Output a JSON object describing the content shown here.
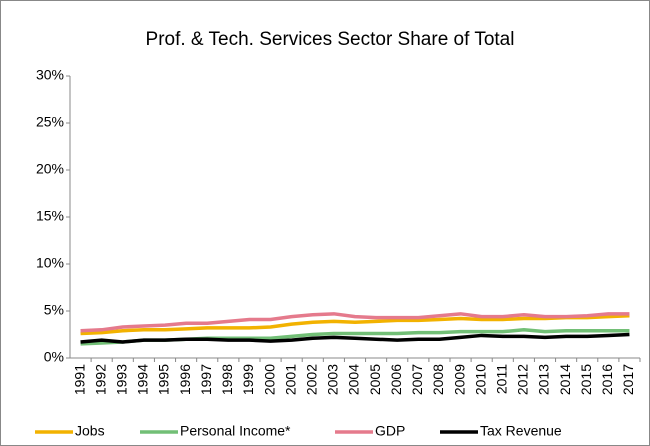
{
  "chart_data": {
    "type": "line",
    "title": "Prof. & Tech. Services Sector Share of Total",
    "categories": [
      "1991",
      "1992",
      "1993",
      "1994",
      "1995",
      "1996",
      "1997",
      "1998",
      "1999",
      "2000",
      "2001",
      "2002",
      "2003",
      "2004",
      "2005",
      "2006",
      "2007",
      "2008",
      "2009",
      "2010",
      "2011",
      "2012",
      "2013",
      "2014",
      "2015",
      "2016",
      "2017"
    ],
    "series": [
      {
        "name": "Jobs",
        "color": "#f2b200",
        "values": [
          2.6,
          2.7,
          2.9,
          3.0,
          3.0,
          3.1,
          3.2,
          3.2,
          3.2,
          3.3,
          3.6,
          3.8,
          3.9,
          3.8,
          3.9,
          4.0,
          4.0,
          4.1,
          4.2,
          4.1,
          4.1,
          4.2,
          4.2,
          4.3,
          4.3,
          4.4,
          4.5
        ]
      },
      {
        "name": "Personal Income*",
        "color": "#72bf76",
        "values": [
          1.5,
          1.6,
          1.7,
          1.9,
          1.9,
          2.0,
          2.1,
          2.1,
          2.1,
          2.1,
          2.3,
          2.5,
          2.6,
          2.6,
          2.6,
          2.6,
          2.7,
          2.7,
          2.8,
          2.8,
          2.8,
          3.0,
          2.8,
          2.9,
          2.9,
          2.9,
          2.9
        ]
      },
      {
        "name": "GDP",
        "color": "#e57a8c",
        "values": [
          2.9,
          3.0,
          3.3,
          3.4,
          3.5,
          3.7,
          3.7,
          3.9,
          4.1,
          4.1,
          4.4,
          4.6,
          4.7,
          4.4,
          4.3,
          4.3,
          4.3,
          4.5,
          4.7,
          4.4,
          4.4,
          4.6,
          4.4,
          4.4,
          4.5,
          4.7,
          4.7
        ]
      },
      {
        "name": "Tax Revenue",
        "color": "#000000",
        "values": [
          1.7,
          1.9,
          1.7,
          1.9,
          1.9,
          2.0,
          2.0,
          1.9,
          1.9,
          1.8,
          1.9,
          2.1,
          2.2,
          2.1,
          2.0,
          1.9,
          2.0,
          2.0,
          2.2,
          2.4,
          2.3,
          2.3,
          2.2,
          2.3,
          2.3,
          2.4,
          2.5
        ]
      }
    ],
    "ylim": [
      0,
      30
    ],
    "yticks": [
      {
        "value": 0,
        "label": "0%"
      },
      {
        "value": 5,
        "label": "5%"
      },
      {
        "value": 10,
        "label": "10%"
      },
      {
        "value": 15,
        "label": "15%"
      },
      {
        "value": 20,
        "label": "20%"
      },
      {
        "value": 25,
        "label": "25%"
      },
      {
        "value": 30,
        "label": "30%"
      }
    ],
    "legend": "bottom"
  }
}
